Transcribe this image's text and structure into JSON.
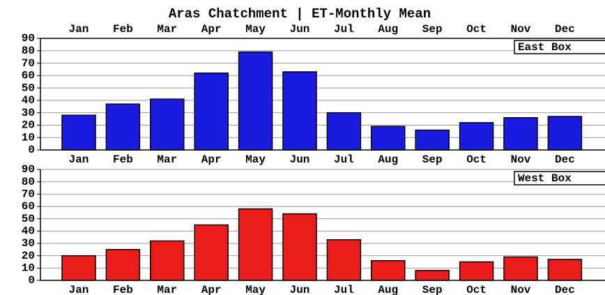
{
  "chart_data": [
    {
      "type": "bar",
      "title": "Aras Chatchment | ET-Monthly Mean",
      "legend": "East Box",
      "legend_position": "upper right",
      "categories": [
        "Jan",
        "Feb",
        "Mar",
        "Apr",
        "May",
        "Jun",
        "Jul",
        "Aug",
        "Sep",
        "Oct",
        "Nov",
        "Dec"
      ],
      "values": [
        28,
        37,
        41,
        62,
        79,
        63,
        30,
        19,
        16,
        22,
        26,
        27
      ],
      "color": "#1c1ce0",
      "ylim": [
        0,
        90
      ],
      "yticks": [
        0,
        10,
        20,
        30,
        40,
        50,
        60,
        70,
        80,
        90
      ],
      "grid": true
    },
    {
      "type": "bar",
      "legend": "West Box",
      "legend_position": "upper right",
      "categories": [
        "Jan",
        "Feb",
        "Mar",
        "Apr",
        "May",
        "Jun",
        "Jul",
        "Aug",
        "Sep",
        "Oct",
        "Nov",
        "Dec"
      ],
      "values": [
        20,
        25,
        32,
        45,
        58,
        54,
        33,
        16,
        8,
        15,
        19,
        17
      ],
      "color": "#ea1c1c",
      "ylim": [
        0,
        90
      ],
      "yticks": [
        0,
        10,
        20,
        30,
        40,
        50,
        60,
        70,
        80,
        90
      ],
      "grid": true
    }
  ]
}
